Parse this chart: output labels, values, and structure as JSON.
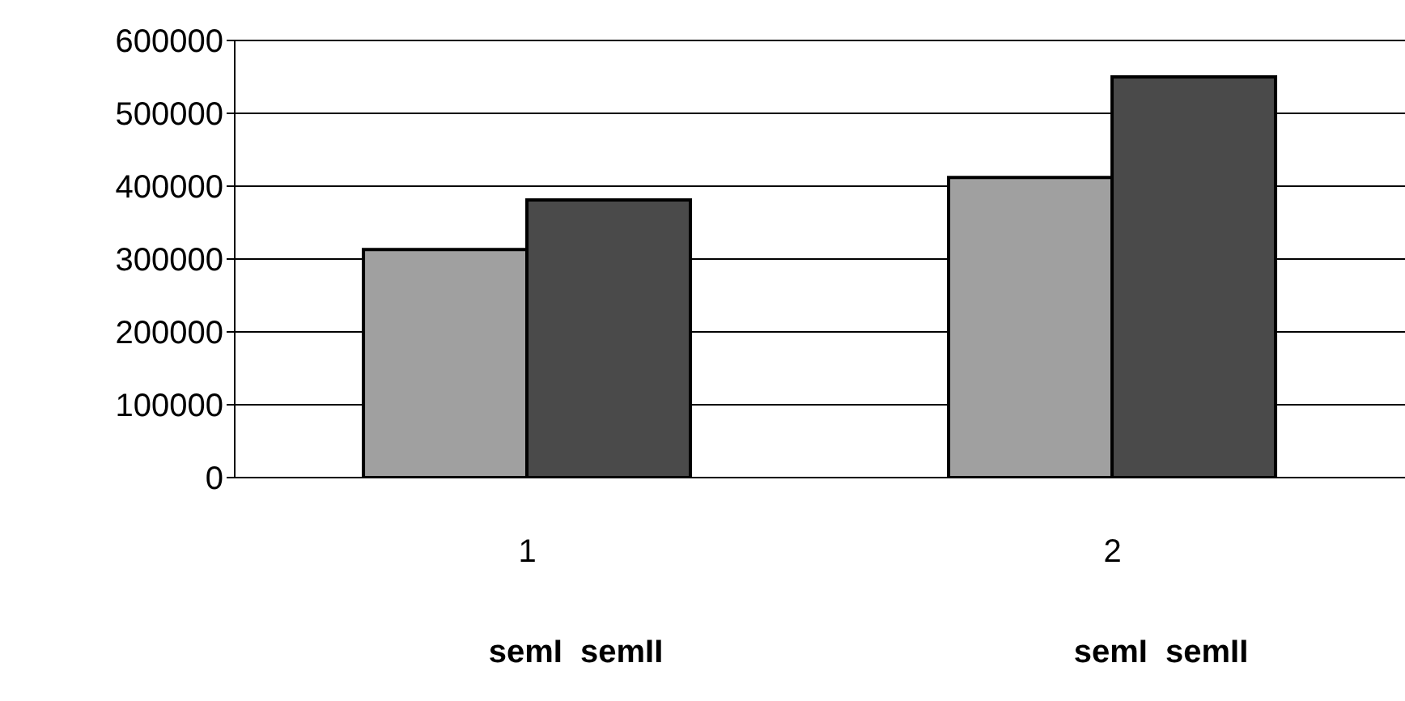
{
  "chart_data": {
    "type": "bar",
    "categories": [
      "1",
      "2"
    ],
    "series": [
      {
        "color": "#a0a0a0",
        "values": [
          313000,
          412000
        ]
      },
      {
        "color": "#4a4a4a",
        "values": [
          381000,
          550000
        ]
      }
    ],
    "ylim": [
      0,
      600000
    ],
    "yticks": [
      0,
      100000,
      200000,
      300000,
      400000,
      500000,
      600000
    ],
    "grid": "y",
    "legend": false,
    "annotations": [
      "semI  semII",
      "semI  semII"
    ]
  }
}
